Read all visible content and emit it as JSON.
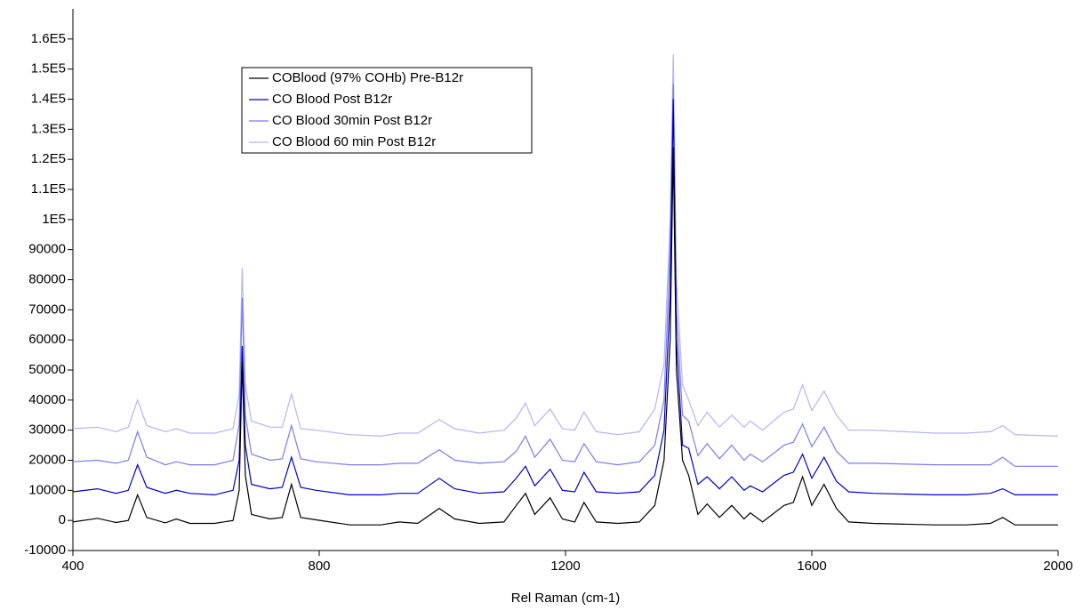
{
  "chart_data": {
    "type": "line",
    "x_label": "Rel Raman (cm-1)",
    "x": [
      400,
      440,
      470,
      490,
      505,
      520,
      550,
      568,
      590,
      630,
      660,
      670,
      675,
      680,
      690,
      720,
      740,
      755,
      770,
      795,
      850,
      900,
      930,
      960,
      995,
      1020,
      1060,
      1100,
      1120,
      1135,
      1150,
      1175,
      1195,
      1215,
      1230,
      1250,
      1285,
      1320,
      1345,
      1360,
      1370,
      1375,
      1380,
      1390,
      1400,
      1415,
      1430,
      1450,
      1470,
      1490,
      1500,
      1520,
      1555,
      1570,
      1585,
      1600,
      1620,
      1640,
      1660,
      1700,
      1800,
      1850,
      1890,
      1910,
      1930,
      2000
    ],
    "series": [
      {
        "name": "COBlood (97% COHb) Pre-B12r",
        "color": "#000000",
        "values": [
          -500,
          700,
          -700,
          0,
          8500,
          1000,
          -800,
          500,
          -1000,
          -1000,
          0,
          10000,
          53000,
          15000,
          2000,
          500,
          1000,
          12000,
          1000,
          200,
          -1500,
          -1500,
          -500,
          -1000,
          4000,
          500,
          -1000,
          -500,
          5000,
          9000,
          2000,
          7500,
          500,
          -500,
          6000,
          -500,
          -1000,
          -500,
          5000,
          20000,
          60000,
          124000,
          50000,
          20000,
          15000,
          2000,
          5500,
          1000,
          5000,
          500,
          2500,
          -500,
          5000,
          6000,
          14500,
          5000,
          12000,
          4000,
          -500,
          -1000,
          -1500,
          -1500,
          -1000,
          1000,
          -1500,
          -1500
        ]
      },
      {
        "name": "CO Blood Post B12r",
        "color": "#0000cc",
        "values": [
          9500,
          10500,
          9000,
          10000,
          18500,
          11000,
          9000,
          10000,
          9000,
          8500,
          10000,
          20000,
          58000,
          25000,
          12000,
          10500,
          11000,
          21000,
          11000,
          10000,
          8500,
          8500,
          9000,
          9000,
          14000,
          10500,
          9000,
          9500,
          14000,
          18000,
          11500,
          17000,
          10000,
          9500,
          16000,
          9500,
          9000,
          9500,
          15000,
          30000,
          75000,
          140000,
          60000,
          25000,
          24000,
          12000,
          14500,
          10500,
          14500,
          10000,
          11500,
          9500,
          15000,
          16000,
          22000,
          14000,
          21000,
          13000,
          9500,
          9000,
          8500,
          8500,
          9000,
          10500,
          8500,
          8500
        ]
      },
      {
        "name": "CO Blood 30min Post B12r",
        "color": "#7b7bf0",
        "values": [
          19500,
          20000,
          19000,
          20000,
          29500,
          21000,
          18500,
          19500,
          18500,
          18500,
          20000,
          32000,
          74000,
          35000,
          22000,
          20000,
          20500,
          31500,
          20500,
          19500,
          18500,
          18500,
          19000,
          19000,
          23500,
          20000,
          19000,
          19500,
          23000,
          28000,
          21000,
          27000,
          20000,
          19500,
          25500,
          19500,
          18500,
          19500,
          25000,
          40000,
          90000,
          145000,
          70000,
          35000,
          33000,
          21500,
          25500,
          20500,
          25000,
          20000,
          22000,
          19500,
          25000,
          26000,
          32000,
          24500,
          31000,
          23000,
          19000,
          19000,
          18500,
          18500,
          18500,
          21000,
          18000,
          18000
        ]
      },
      {
        "name": "CO Blood 60 min Post B12r",
        "color": "#b4b4fa",
        "values": [
          30500,
          31000,
          29500,
          31000,
          40000,
          31500,
          29500,
          30500,
          29000,
          29000,
          30500,
          42000,
          84000,
          45000,
          33000,
          31000,
          31000,
          42000,
          30500,
          30000,
          28500,
          28000,
          29000,
          29000,
          33500,
          30500,
          29000,
          30000,
          34000,
          39000,
          31500,
          37000,
          30500,
          30000,
          36000,
          29500,
          28500,
          29500,
          37000,
          52000,
          100000,
          155000,
          80000,
          45000,
          40000,
          31500,
          36000,
          31000,
          35000,
          31000,
          33000,
          30000,
          36000,
          37000,
          45000,
          36500,
          43000,
          35000,
          30000,
          30000,
          29000,
          29000,
          29500,
          31500,
          28500,
          28000
        ]
      }
    ],
    "xlim": [
      400,
      2000
    ],
    "xticks": [
      400,
      800,
      1200,
      1600,
      2000
    ],
    "ylim": [
      -10000,
      170000
    ],
    "yticks": [
      -10000,
      0,
      10000,
      20000,
      30000,
      40000,
      50000,
      60000,
      70000,
      80000,
      90000,
      {
        "value": 100000,
        "label": "1E5"
      },
      {
        "value": 110000,
        "label": "1.1E5"
      },
      {
        "value": 120000,
        "label": "1.2E5"
      },
      {
        "value": 130000,
        "label": "1.3E5"
      },
      {
        "value": 140000,
        "label": "1.4E5"
      },
      {
        "value": 150000,
        "label": "1.5E5"
      },
      {
        "value": 160000,
        "label": "1.6E5"
      }
    ],
    "grid": false,
    "legend": "upper left"
  }
}
